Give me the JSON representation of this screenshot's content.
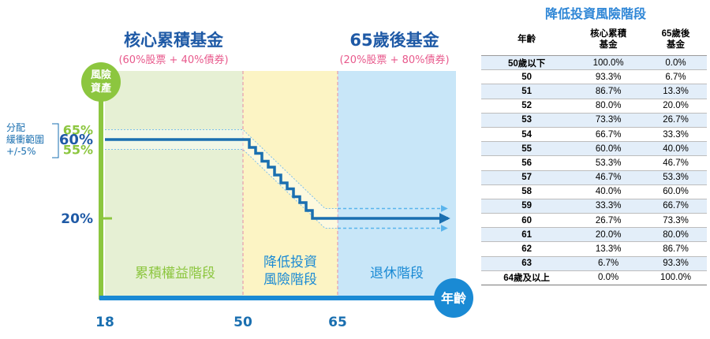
{
  "chart_data": {
    "type": "line",
    "fund_left": {
      "title": "核心累積基金",
      "subtitle": "(60%股票 + 40%債券)"
    },
    "fund_right": {
      "title": "65歲後基金",
      "subtitle": "(20%股票 + 80%債券)"
    },
    "ylabel": "風險資產",
    "xlabel": "年齡",
    "band_label": [
      "分配",
      "緩衝範圍",
      "+/-5%"
    ],
    "y_ticks": [
      "65%",
      "60%",
      "55%",
      "20%"
    ],
    "x_ticks": [
      "18",
      "50",
      "65"
    ],
    "phases": [
      "累積權益階段",
      "降低投資風險階段",
      "退休階段"
    ],
    "phase_colors": [
      "#e6f0d4",
      "#fcf4c4",
      "#c8e6f8"
    ],
    "axis_y_color": "#8cc63f",
    "axis_x_color": "#1a8ad4",
    "line_color": "#1a6fb0",
    "series": [
      {
        "x": [
          18,
          50,
          51,
          52,
          53,
          54,
          55,
          56,
          57,
          58,
          59,
          60,
          61,
          62,
          63,
          64,
          65
        ],
        "y": [
          60,
          60,
          56,
          53,
          49,
          46,
          42,
          38,
          35,
          31,
          28,
          24,
          20,
          20,
          20,
          20,
          20
        ]
      }
    ]
  },
  "table": {
    "title": "降低投資風險階段",
    "headers": [
      "年齡",
      "核心累積\n基金",
      "65歲後\n基金"
    ],
    "rows": [
      {
        "age": "50歲以下",
        "core": "100.0%",
        "after65": "0.0%"
      },
      {
        "age": "50",
        "core": "93.3%",
        "after65": "6.7%"
      },
      {
        "age": "51",
        "core": "86.7%",
        "after65": "13.3%"
      },
      {
        "age": "52",
        "core": "80.0%",
        "after65": "20.0%"
      },
      {
        "age": "53",
        "core": "73.3%",
        "after65": "26.7%"
      },
      {
        "age": "54",
        "core": "66.7%",
        "after65": "33.3%"
      },
      {
        "age": "55",
        "core": "60.0%",
        "after65": "40.0%"
      },
      {
        "age": "56",
        "core": "53.3%",
        "after65": "46.7%"
      },
      {
        "age": "57",
        "core": "46.7%",
        "after65": "53.3%"
      },
      {
        "age": "58",
        "core": "40.0%",
        "after65": "60.0%"
      },
      {
        "age": "59",
        "core": "33.3%",
        "after65": "66.7%"
      },
      {
        "age": "60",
        "core": "26.7%",
        "after65": "73.3%"
      },
      {
        "age": "61",
        "core": "20.0%",
        "after65": "80.0%"
      },
      {
        "age": "62",
        "core": "13.3%",
        "after65": "86.7%"
      },
      {
        "age": "63",
        "core": "6.7%",
        "after65": "93.3%"
      },
      {
        "age": "64歲及以上",
        "core": "0.0%",
        "after65": "100.0%"
      }
    ]
  }
}
